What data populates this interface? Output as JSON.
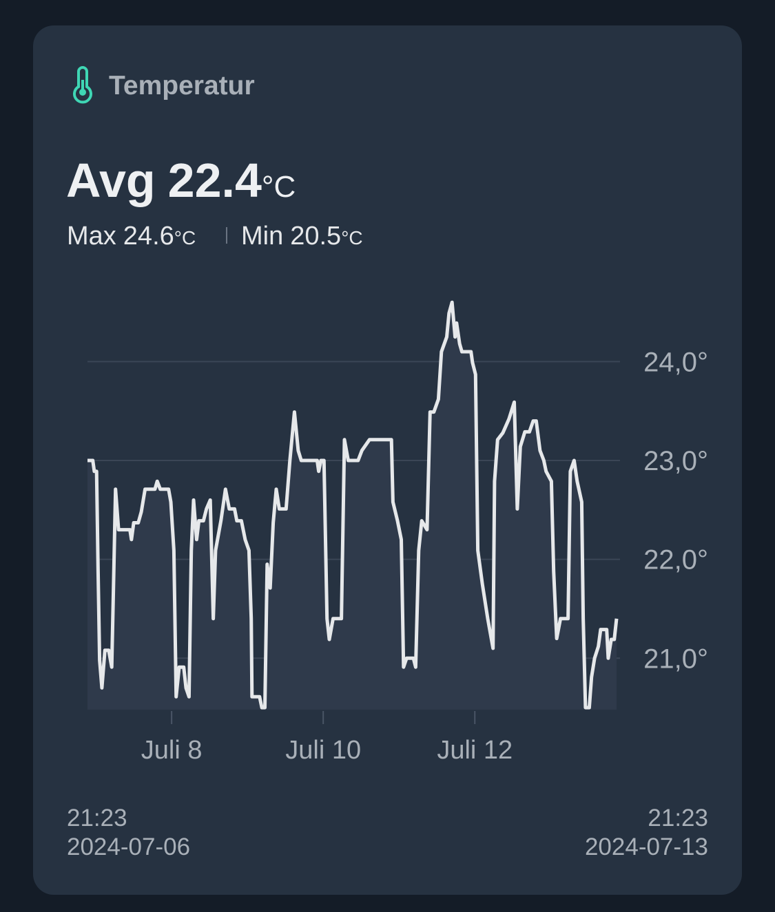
{
  "header": {
    "title": "Temperatur"
  },
  "summary": {
    "avg": {
      "label": "Avg",
      "value": "22.4",
      "unit": "°C"
    },
    "max": {
      "label": "Max",
      "value": "24.6",
      "unit": "°C"
    },
    "min": {
      "label": "Min",
      "value": "20.5",
      "unit": "°C"
    }
  },
  "chart_data": {
    "type": "line",
    "x": [
      6.89,
      6.96,
      6.98,
      7.01,
      7.03,
      7.05,
      7.08,
      7.12,
      7.17,
      7.21,
      7.23,
      7.26,
      7.3,
      7.45,
      7.47,
      7.5,
      7.56,
      7.6,
      7.65,
      7.78,
      7.81,
      7.85,
      7.96,
      7.99,
      8.03,
      8.06,
      8.1,
      8.16,
      8.19,
      8.23,
      8.26,
      8.29,
      8.33,
      8.36,
      8.42,
      8.46,
      8.51,
      8.55,
      8.58,
      8.65,
      8.71,
      8.76,
      8.83,
      8.86,
      8.92,
      8.97,
      9.02,
      9.05,
      9.06,
      9.16,
      9.19,
      9.23,
      9.26,
      9.3,
      9.34,
      9.38,
      9.42,
      9.51,
      9.56,
      9.62,
      9.67,
      9.71,
      9.92,
      9.94,
      9.97,
      10.01,
      10.05,
      10.08,
      10.13,
      10.24,
      10.28,
      10.33,
      10.46,
      10.51,
      10.61,
      10.9,
      10.92,
      10.98,
      11.03,
      11.06,
      11.1,
      11.19,
      11.22,
      11.26,
      11.3,
      11.37,
      11.41,
      11.46,
      11.52,
      11.56,
      11.63,
      11.66,
      11.7,
      11.74,
      11.76,
      11.8,
      11.83,
      11.95,
      11.97,
      12.01,
      12.04,
      12.1,
      12.17,
      12.24,
      12.26,
      12.3,
      12.37,
      12.45,
      12.52,
      12.56,
      12.6,
      12.66,
      12.72,
      12.77,
      12.81,
      12.86,
      12.91,
      12.94,
      13.01,
      13.04,
      13.08,
      13.13,
      13.17,
      13.23,
      13.26,
      13.31,
      13.35,
      13.41,
      13.43,
      13.46,
      13.51,
      13.54,
      13.58,
      13.63,
      13.66,
      13.74,
      13.76,
      13.8,
      13.84,
      13.87
    ],
    "series": [
      {
        "color": "#e6e8ea",
        "values": [
          23.0,
          23.0,
          22.89,
          22.89,
          21.88,
          20.98,
          20.7,
          21.08,
          21.08,
          20.91,
          21.61,
          22.71,
          22.3,
          22.3,
          22.2,
          22.37,
          22.37,
          22.48,
          22.71,
          22.71,
          22.79,
          22.71,
          22.71,
          22.58,
          22.09,
          20.61,
          20.91,
          20.91,
          20.7,
          20.61,
          22.09,
          22.6,
          22.2,
          22.39,
          22.39,
          22.51,
          22.6,
          21.4,
          22.09,
          22.39,
          22.71,
          22.51,
          22.51,
          22.39,
          22.39,
          22.2,
          22.09,
          21.4,
          20.61,
          20.61,
          20.5,
          20.5,
          21.95,
          21.71,
          22.37,
          22.71,
          22.51,
          22.51,
          23.0,
          23.49,
          23.1,
          23.0,
          23.0,
          22.89,
          23.0,
          23.0,
          21.4,
          21.19,
          21.4,
          21.4,
          23.21,
          23.0,
          23.0,
          23.1,
          23.21,
          23.21,
          22.58,
          22.39,
          22.2,
          20.91,
          21.0,
          21.0,
          20.91,
          22.09,
          22.39,
          22.3,
          23.49,
          23.49,
          23.62,
          24.1,
          24.25,
          24.49,
          24.6,
          24.25,
          24.39,
          24.18,
          24.1,
          24.1,
          23.99,
          23.87,
          22.09,
          21.75,
          21.4,
          21.1,
          22.79,
          23.21,
          23.28,
          23.42,
          23.59,
          22.51,
          23.14,
          23.29,
          23.29,
          23.4,
          23.4,
          23.1,
          23.0,
          22.89,
          22.79,
          21.88,
          21.2,
          21.4,
          21.4,
          21.4,
          22.89,
          23.0,
          22.79,
          22.58,
          21.4,
          20.5,
          20.5,
          20.81,
          21.0,
          21.12,
          21.29,
          21.29,
          21.0,
          21.19,
          21.19,
          21.4
        ]
      }
    ],
    "xlim": [
      6.89,
      13.87
    ],
    "xticks": [
      {
        "value": 8,
        "label": "Juli 8"
      },
      {
        "value": 10,
        "label": "Juli 10"
      },
      {
        "value": 12,
        "label": "Juli 12"
      }
    ],
    "ylim": [
      20.48,
      24.65
    ],
    "yticks": [
      {
        "value": 21,
        "label": "21,0°"
      },
      {
        "value": 22,
        "label": "22,0°"
      },
      {
        "value": 23,
        "label": "23,0°"
      },
      {
        "value": 24,
        "label": "24,0°"
      }
    ],
    "grid": true
  },
  "footer": {
    "start": {
      "time": "21:23",
      "date": "2024-07-06"
    },
    "end": {
      "time": "21:23",
      "date": "2024-07-13"
    }
  }
}
